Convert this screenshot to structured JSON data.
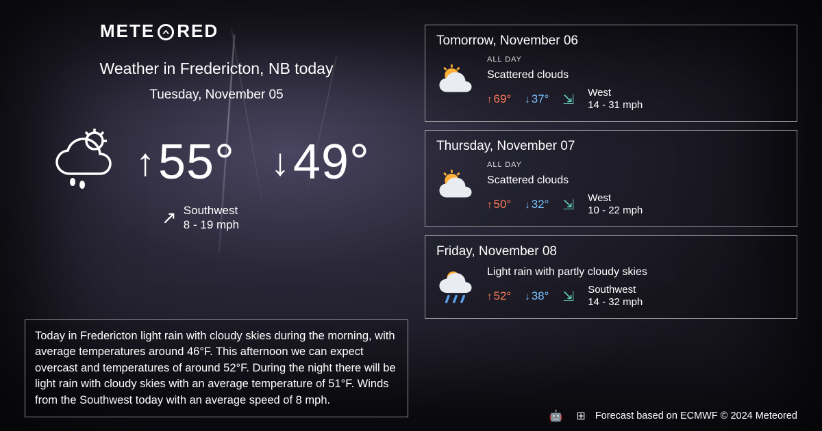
{
  "brand": "METEORED",
  "title": "Weather in Fredericton, NB today",
  "today_date": "Tuesday, November 05",
  "today": {
    "high": "55°",
    "low": "49°",
    "wind_dir": "Southwest",
    "wind_speed": "8 - 19 mph",
    "icon": "rain-cloud-sun"
  },
  "description": "Today in Fredericton light rain with cloudy skies during the morning, with average temperatures around 46°F. This afternoon we can expect overcast and temperatures of around 52°F. During the night there will be light rain with cloudy skies with an average temperature of 51°F. Winds from the Southwest today with an average speed of 8 mph.",
  "forecast": [
    {
      "date": "Tomorrow, November 06",
      "allday_label": "ALL DAY",
      "condition": "Scattered clouds",
      "high": "69°",
      "low": "37°",
      "wind_dir": "West",
      "wind_speed": "14 - 31 mph",
      "icon": "sun-cloud"
    },
    {
      "date": "Thursday, November 07",
      "allday_label": "ALL DAY",
      "condition": "Scattered clouds",
      "high": "50°",
      "low": "32°",
      "wind_dir": "West",
      "wind_speed": "10 - 22 mph",
      "icon": "sun-cloud"
    },
    {
      "date": "Friday, November 08",
      "allday_label": "",
      "condition": "Light rain with partly cloudy skies",
      "high": "52°",
      "low": "38°",
      "wind_dir": "Southwest",
      "wind_speed": "14 - 32 mph",
      "icon": "rain-sun-cloud"
    }
  ],
  "footer": "Forecast based on ECMWF © 2024 Meteored",
  "colors": {
    "text": "#ffffff",
    "high": "#ff7a59",
    "low": "#7ac3ff",
    "wind_flag": "#5fd0b8",
    "border": "rgba(255,255,255,0.55)",
    "bg_dark": "#18161f",
    "bg_mid": "#2a2838",
    "bg_light": "#4a4560"
  }
}
